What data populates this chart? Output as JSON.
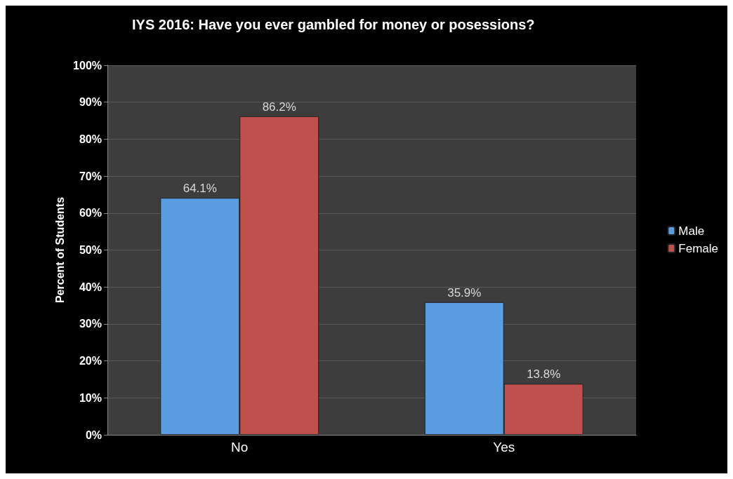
{
  "chart_data": {
    "type": "bar",
    "title": "IYS 2016: Have you ever gambled for money or posessions?",
    "ylabel": "Percent of Students",
    "categories": [
      "No",
      "Yes"
    ],
    "series": [
      {
        "name": "Male",
        "color": "#5a9de0",
        "values": [
          64.1,
          35.9
        ],
        "value_labels": [
          "64.1%",
          "35.9%"
        ]
      },
      {
        "name": "Female",
        "color": "#c0504d",
        "values": [
          86.2,
          13.8
        ],
        "value_labels": [
          "86.2%",
          "13.8%"
        ]
      }
    ],
    "ylim": [
      0,
      100
    ],
    "yticks": [
      {
        "value": 0,
        "label": "0%"
      },
      {
        "value": 10,
        "label": "10%"
      },
      {
        "value": 20,
        "label": "20%"
      },
      {
        "value": 30,
        "label": "30%"
      },
      {
        "value": 40,
        "label": "40%"
      },
      {
        "value": 50,
        "label": "50%"
      },
      {
        "value": 60,
        "label": "60%"
      },
      {
        "value": 70,
        "label": "70%"
      },
      {
        "value": 80,
        "label": "80%"
      },
      {
        "value": 90,
        "label": "90%"
      },
      {
        "value": 100,
        "label": "100%"
      }
    ],
    "grid": true,
    "legend": "right"
  }
}
